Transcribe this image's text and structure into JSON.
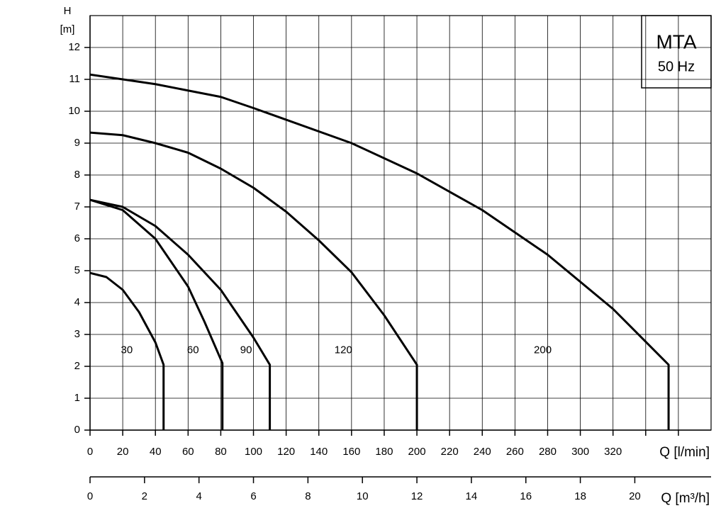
{
  "chart_data": {
    "type": "line",
    "badge_title": "MTA",
    "badge_subtitle": "50 Hz",
    "ylabel_symbol": "H",
    "ylabel_unit": "[m]",
    "xlabel": "Q [l/min]",
    "x2label": "Q [m³/h]",
    "xlim": [
      0,
      380
    ],
    "ylim": [
      0,
      13
    ],
    "x2lim": [
      0,
      22.8
    ],
    "xticks": [
      0,
      20,
      40,
      60,
      80,
      100,
      120,
      140,
      160,
      180,
      200,
      220,
      240,
      260,
      280,
      300,
      320
    ],
    "x_unlabeled_grid": [
      340,
      360
    ],
    "yticks": [
      0,
      1,
      2,
      3,
      4,
      5,
      6,
      7,
      8,
      9,
      10,
      11,
      12
    ],
    "x2ticks": [
      0,
      2,
      4,
      6,
      8,
      10,
      12,
      14,
      16,
      18,
      20
    ],
    "grid": true,
    "color": "#000000",
    "series": [
      {
        "name": "30",
        "x": [
          0,
          10,
          20,
          30,
          40,
          45,
          45
        ],
        "values": [
          4.93,
          4.8,
          4.4,
          3.7,
          2.75,
          2.05,
          0
        ]
      },
      {
        "name": "60",
        "x": [
          0,
          20,
          40,
          60,
          70,
          81,
          81
        ],
        "values": [
          7.22,
          6.9,
          6.0,
          4.5,
          3.4,
          2.1,
          0
        ]
      },
      {
        "name": "90",
        "x": [
          0,
          20,
          40,
          60,
          80,
          100,
          110,
          110
        ],
        "values": [
          7.22,
          7.0,
          6.4,
          5.5,
          4.4,
          2.9,
          2.05,
          0
        ]
      },
      {
        "name": "120",
        "x": [
          0,
          20,
          40,
          60,
          80,
          100,
          120,
          140,
          160,
          180,
          200,
          200
        ],
        "values": [
          9.33,
          9.25,
          9.0,
          8.7,
          8.2,
          7.6,
          6.85,
          5.95,
          4.95,
          3.6,
          2.05,
          0
        ]
      },
      {
        "name": "200",
        "x": [
          0,
          40,
          80,
          100,
          160,
          200,
          240,
          280,
          320,
          354,
          354
        ],
        "values": [
          11.15,
          10.85,
          10.45,
          10.1,
          9.0,
          8.05,
          6.9,
          5.5,
          3.8,
          2.05,
          0
        ]
      }
    ]
  }
}
